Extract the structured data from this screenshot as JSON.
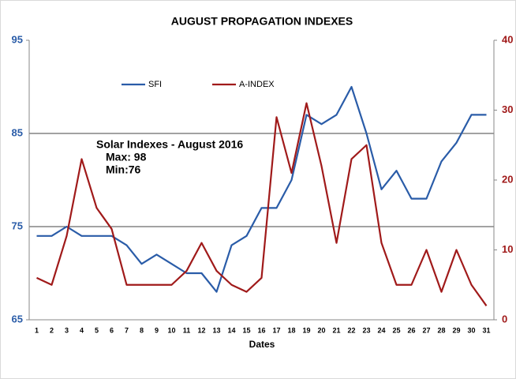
{
  "chart_data": {
    "type": "line",
    "title": "AUGUST PROPAGATION  INDEXES",
    "x_label": "Dates",
    "annotation": [
      "Solar Indexes - August 2016",
      "Max: 98",
      "Min:76"
    ],
    "categories": [
      "1",
      "2",
      "3",
      "4",
      "5",
      "6",
      "7",
      "8",
      "9",
      "10",
      "11",
      "12",
      "13",
      "14",
      "15",
      "16",
      "17",
      "18",
      "19",
      "20",
      "21",
      "22",
      "23",
      "24",
      "25",
      "26",
      "27",
      "28",
      "29",
      "30",
      "31"
    ],
    "series": [
      {
        "name": "SFI",
        "color": "#2a5ca8",
        "values": [
          74,
          74,
          75,
          74,
          74,
          74,
          73,
          71,
          72,
          71,
          70,
          70,
          68,
          73,
          74,
          77,
          77,
          80,
          87,
          86,
          87,
          90,
          85,
          79,
          81,
          78,
          78,
          82,
          84,
          87,
          87
        ]
      },
      {
        "name": "A-INDEX",
        "color": "#a01a1a",
        "axis": "y2",
        "values": [
          6,
          5,
          12,
          23,
          16,
          13,
          5,
          5,
          5,
          5,
          7,
          11,
          7,
          5,
          4,
          6,
          29,
          21,
          31,
          22,
          11,
          23,
          25,
          11,
          5,
          5,
          10,
          4,
          10,
          5,
          2
        ]
      }
    ],
    "ylim": [
      65,
      95
    ],
    "yticks": [
      65,
      75,
      85,
      95
    ],
    "y2lim": [
      0,
      40
    ],
    "y2ticks": [
      0,
      10,
      20,
      30,
      40
    ],
    "grid": true,
    "legend": "top-left"
  }
}
